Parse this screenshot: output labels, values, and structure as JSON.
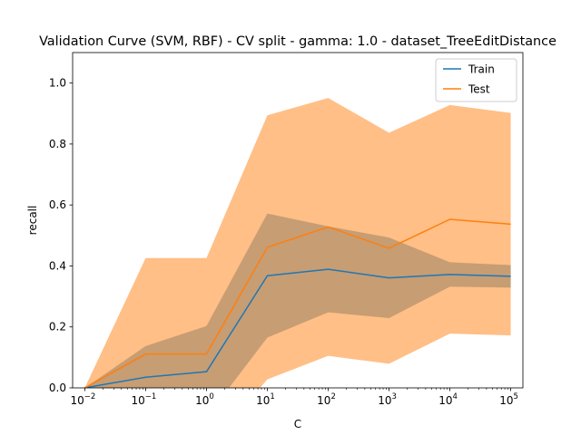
{
  "chart_data": {
    "type": "line",
    "title": "Validation Curve (SVM, RBF) - CV split - gamma: 1.0 - dataset_TreeEditDistance",
    "xlabel": "C",
    "ylabel": "recall",
    "x_scale": "log",
    "x": [
      0.01,
      0.1,
      1,
      10,
      100,
      1000,
      10000,
      100000
    ],
    "x_tick_exponents": [
      "-2",
      "-1",
      "0",
      "1",
      "2",
      "3",
      "4",
      "5"
    ],
    "y_ticks": [
      "0.0",
      "0.2",
      "0.4",
      "0.6",
      "0.8",
      "1.0"
    ],
    "ylim": [
      0.0,
      1.1
    ],
    "grid": false,
    "legend_position": "upper right",
    "series": [
      {
        "name": "Train",
        "color": "#1f77b4",
        "values": [
          0.0,
          0.035,
          0.053,
          0.368,
          0.389,
          0.361,
          0.372,
          0.366
        ],
        "band_lower": [
          0.0,
          -0.067,
          -0.097,
          0.165,
          0.248,
          0.229,
          0.332,
          0.329
        ],
        "band_upper": [
          0.0,
          0.137,
          0.203,
          0.572,
          0.53,
          0.493,
          0.412,
          0.403
        ]
      },
      {
        "name": "Test",
        "color": "#ff7f0e",
        "values": [
          0.0,
          0.111,
          0.111,
          0.461,
          0.528,
          0.458,
          0.553,
          0.537
        ],
        "band_lower": [
          0.0,
          -0.204,
          -0.204,
          0.028,
          0.105,
          0.079,
          0.178,
          0.172
        ],
        "band_upper": [
          0.0,
          0.426,
          0.426,
          0.894,
          0.951,
          0.837,
          0.928,
          0.902
        ]
      }
    ]
  }
}
